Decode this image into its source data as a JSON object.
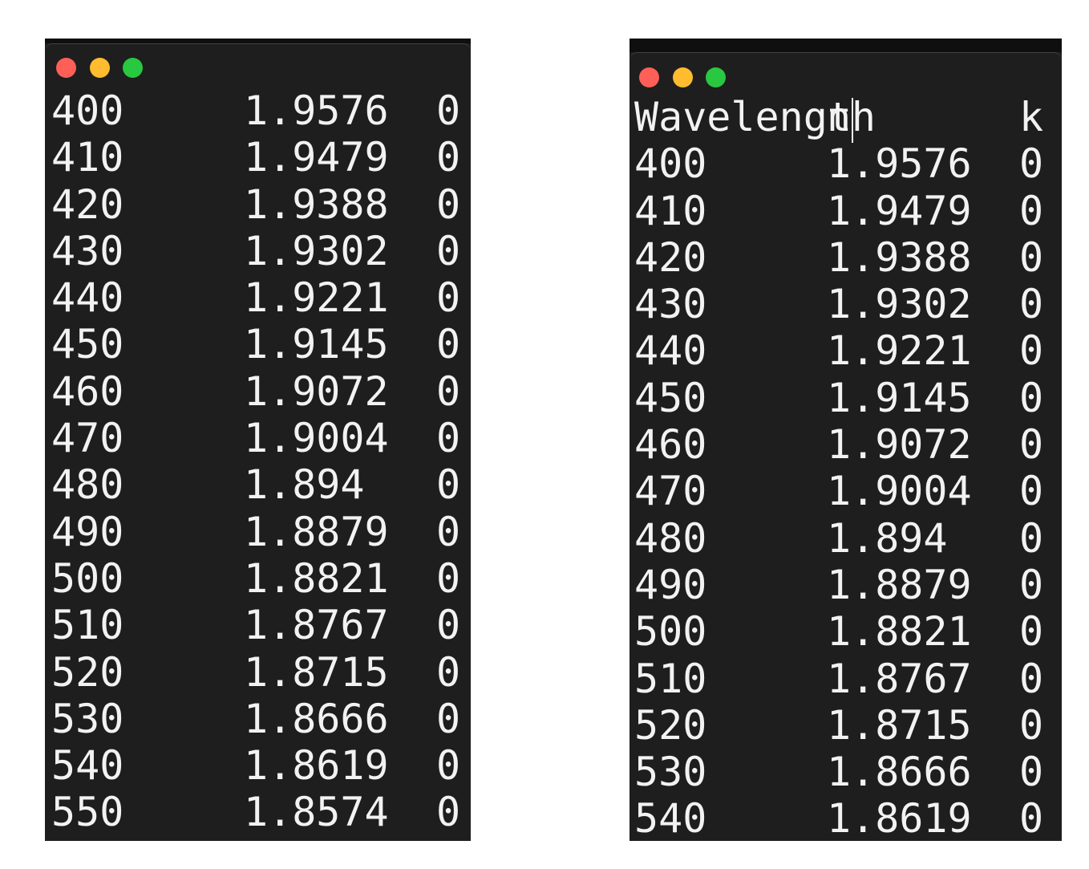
{
  "colors": {
    "background": "#ffffff",
    "terminal_bg": "#1e1e1e",
    "text": "#f2f2f2",
    "close": "#ff5f57",
    "minimize": "#febc2e",
    "zoom": "#28c840"
  },
  "left_window": {
    "rows": [
      {
        "wavelength": "400",
        "n": "1.9576",
        "k": "0"
      },
      {
        "wavelength": "410",
        "n": "1.9479",
        "k": "0"
      },
      {
        "wavelength": "420",
        "n": "1.9388",
        "k": "0"
      },
      {
        "wavelength": "430",
        "n": "1.9302",
        "k": "0"
      },
      {
        "wavelength": "440",
        "n": "1.9221",
        "k": "0"
      },
      {
        "wavelength": "450",
        "n": "1.9145",
        "k": "0"
      },
      {
        "wavelength": "460",
        "n": "1.9072",
        "k": "0"
      },
      {
        "wavelength": "470",
        "n": "1.9004",
        "k": "0"
      },
      {
        "wavelength": "480",
        "n": "1.894",
        "k": "0"
      },
      {
        "wavelength": "490",
        "n": "1.8879",
        "k": "0"
      },
      {
        "wavelength": "500",
        "n": "1.8821",
        "k": "0"
      },
      {
        "wavelength": "510",
        "n": "1.8767",
        "k": "0"
      },
      {
        "wavelength": "520",
        "n": "1.8715",
        "k": "0"
      },
      {
        "wavelength": "530",
        "n": "1.8666",
        "k": "0"
      },
      {
        "wavelength": "540",
        "n": "1.8619",
        "k": "0"
      },
      {
        "wavelength": "550",
        "n": "1.8574",
        "k": "0"
      }
    ]
  },
  "right_window": {
    "header": {
      "wavelength": "Wavelength",
      "n": "n",
      "k": "k"
    },
    "rows": [
      {
        "wavelength": "400",
        "n": "1.9576",
        "k": "0"
      },
      {
        "wavelength": "410",
        "n": "1.9479",
        "k": "0"
      },
      {
        "wavelength": "420",
        "n": "1.9388",
        "k": "0"
      },
      {
        "wavelength": "430",
        "n": "1.9302",
        "k": "0"
      },
      {
        "wavelength": "440",
        "n": "1.9221",
        "k": "0"
      },
      {
        "wavelength": "450",
        "n": "1.9145",
        "k": "0"
      },
      {
        "wavelength": "460",
        "n": "1.9072",
        "k": "0"
      },
      {
        "wavelength": "470",
        "n": "1.9004",
        "k": "0"
      },
      {
        "wavelength": "480",
        "n": "1.894",
        "k": "0"
      },
      {
        "wavelength": "490",
        "n": "1.8879",
        "k": "0"
      },
      {
        "wavelength": "500",
        "n": "1.8821",
        "k": "0"
      },
      {
        "wavelength": "510",
        "n": "1.8767",
        "k": "0"
      },
      {
        "wavelength": "520",
        "n": "1.8715",
        "k": "0"
      },
      {
        "wavelength": "530",
        "n": "1.8666",
        "k": "0"
      },
      {
        "wavelength": "540",
        "n": "1.8619",
        "k": "0"
      }
    ]
  }
}
